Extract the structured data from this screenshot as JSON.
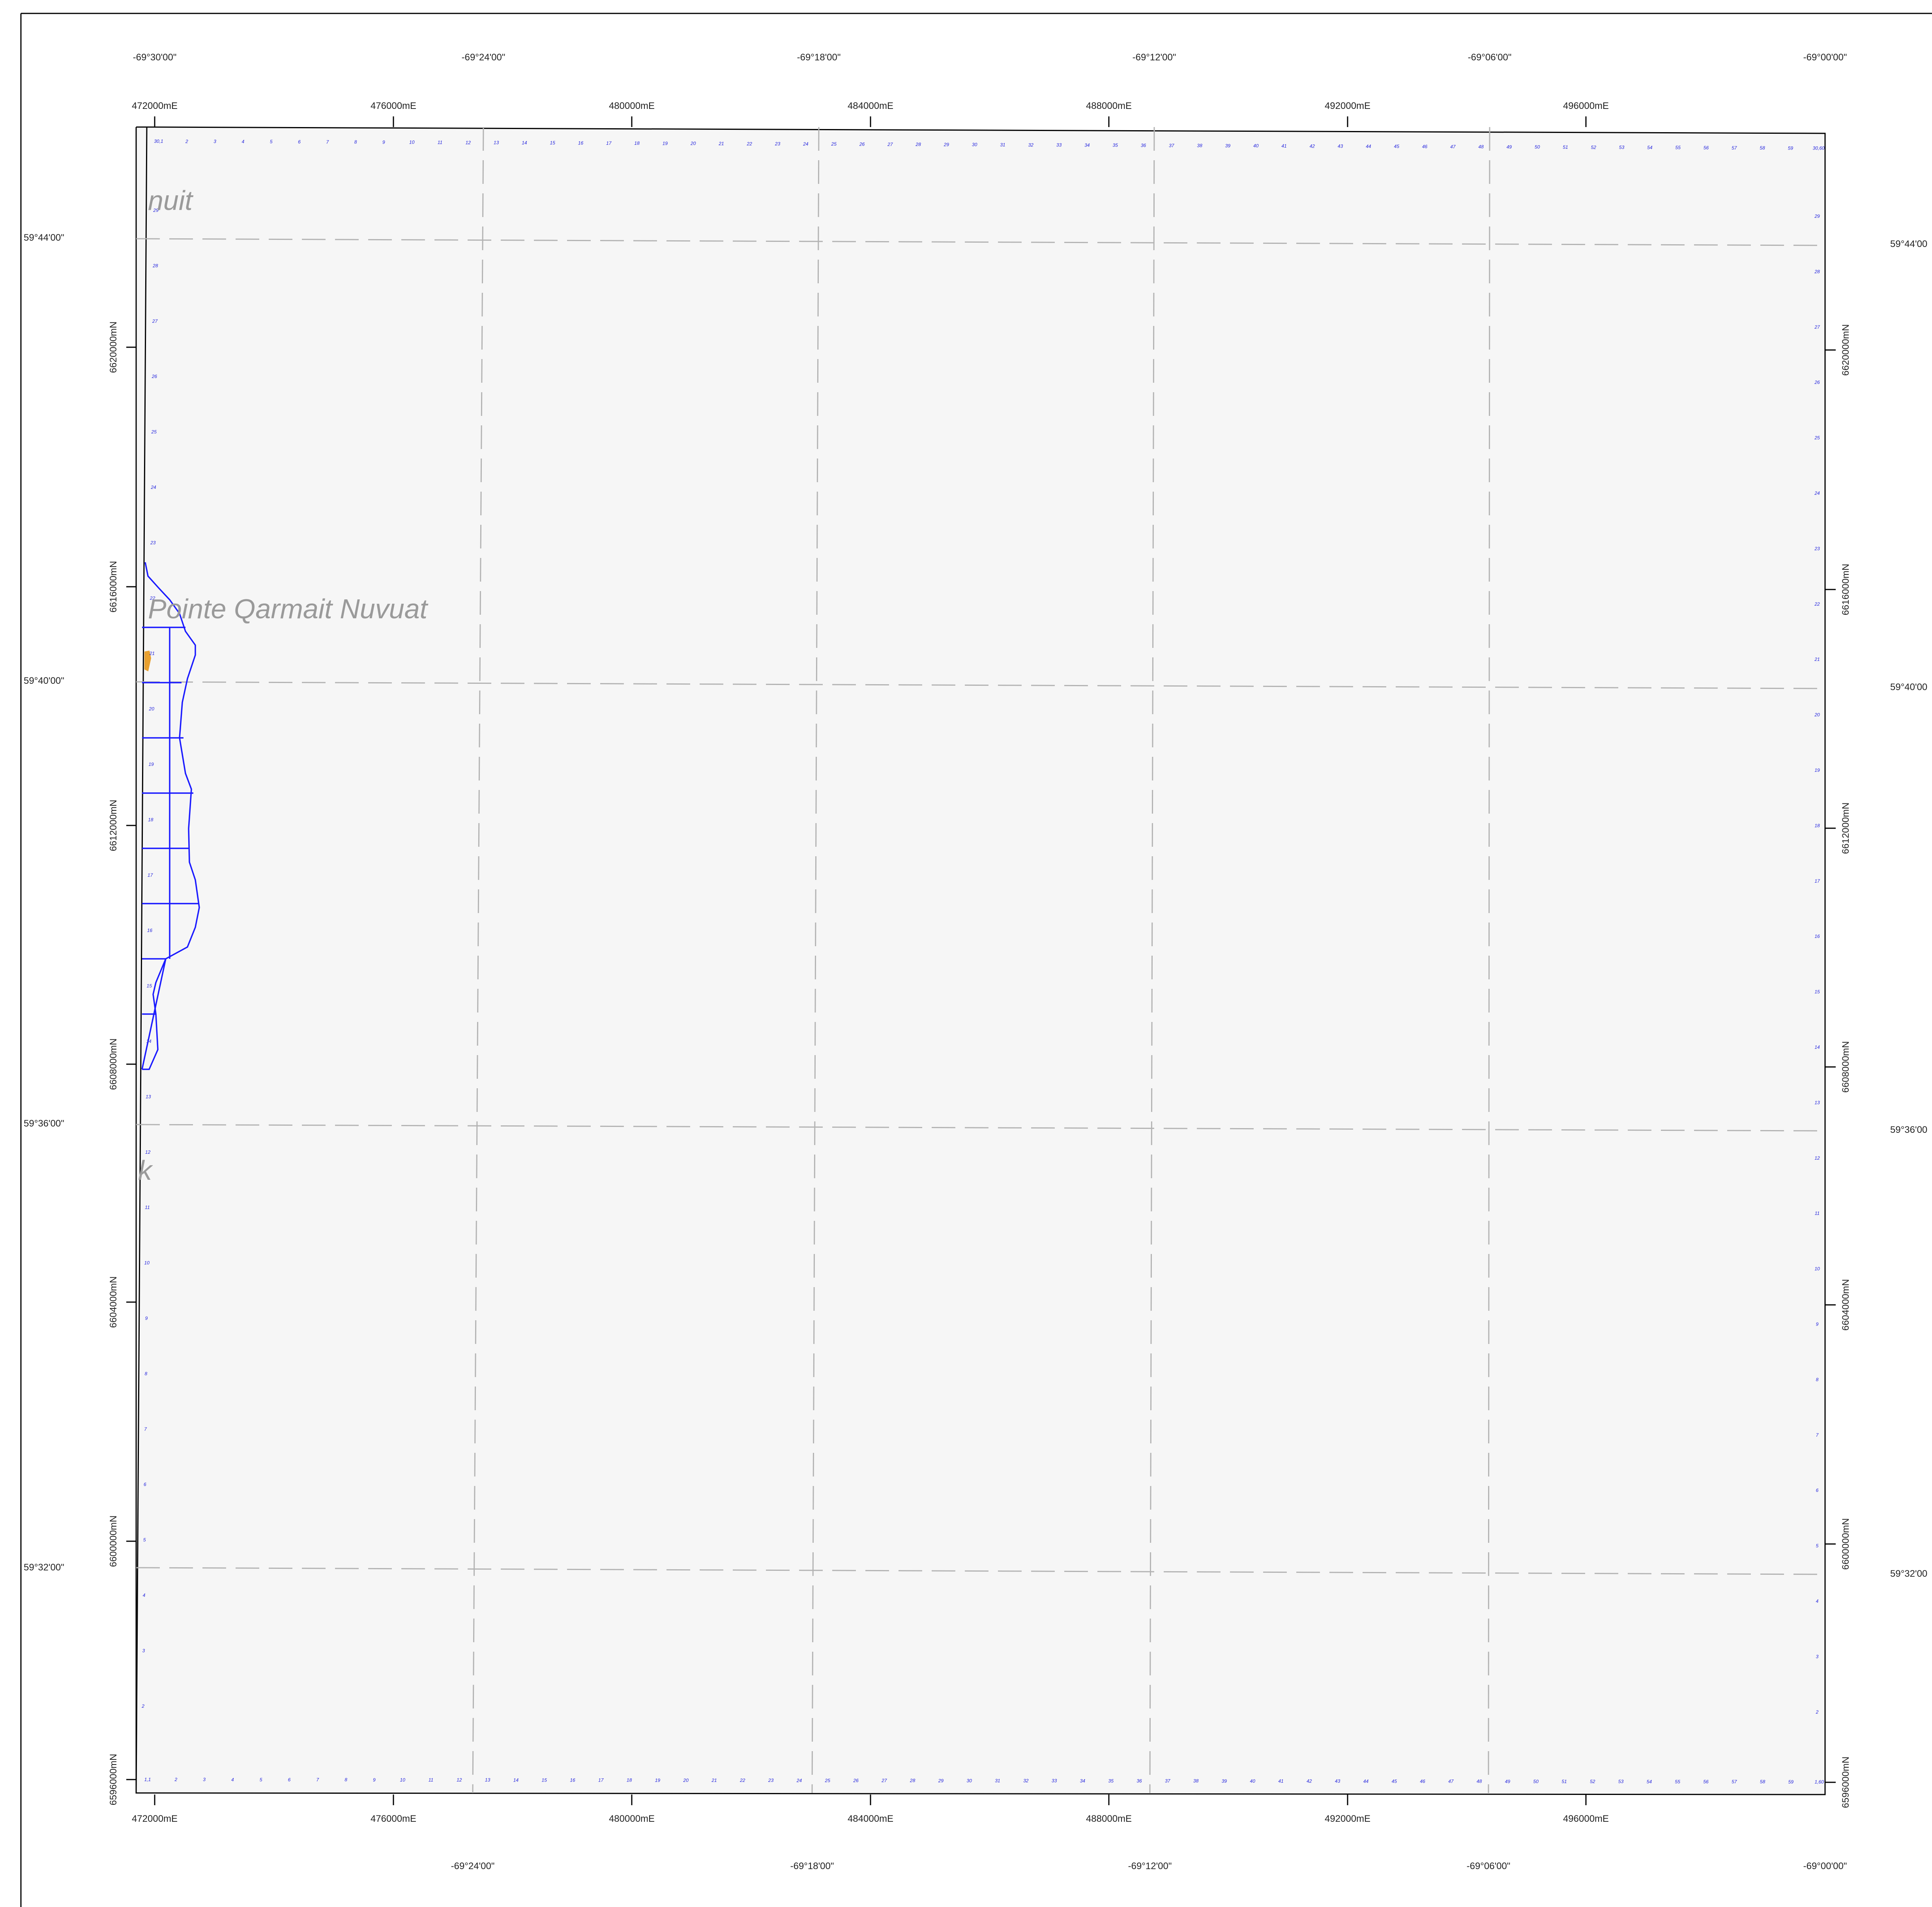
{
  "colors": {
    "page": "#ffffff",
    "map_fill": "#f6f6f6",
    "frame": "#000000",
    "graticule": "#b3b3b3",
    "claim_lines": "#1a1aff",
    "grid_numbers": "#2222dd",
    "place_label": "#9a9a9a",
    "feature": "#e8a030"
  },
  "place_labels": [
    "nuit",
    "Pointe Qarmait Nuvuat",
    "k"
  ],
  "longitude_labels_top": [
    "-69°30'00\"",
    "-69°24'00\"",
    "-69°18'00\"",
    "-69°12'00\"",
    "-69°06'00\"",
    "-69°00'00\""
  ],
  "longitude_labels_bottom": [
    "-69°24'00\"",
    "-69°18'00\"",
    "-69°12'00\"",
    "-69°06'00\"",
    "-69°00'00\""
  ],
  "latitude_labels_left": [
    "59°44'00\"",
    "59°40'00\"",
    "59°36'00\"",
    "59°32'00\""
  ],
  "latitude_labels_right": [
    "59°44'00",
    "59°40'00",
    "59°36'00",
    "59°32'00"
  ],
  "easting_labels": [
    "472000mE",
    "476000mE",
    "480000mE",
    "484000mE",
    "488000mE",
    "492000mE",
    "496000mE"
  ],
  "northing_labels": [
    "6620000mN",
    "6616000mN",
    "6612000mN",
    "6608000mN",
    "6604000mN",
    "6600000mN",
    "6596000mN"
  ],
  "grid_top_labels": [
    "30,1",
    "2",
    "3",
    "4",
    "5",
    "6",
    "7",
    "8",
    "9",
    "10",
    "11",
    "12",
    "13",
    "14",
    "15",
    "16",
    "17",
    "18",
    "19",
    "20",
    "21",
    "22",
    "23",
    "24",
    "25",
    "26",
    "27",
    "28",
    "29",
    "30",
    "31",
    "32",
    "33",
    "34",
    "35",
    "36",
    "37",
    "38",
    "39",
    "40",
    "41",
    "42",
    "43",
    "44",
    "45",
    "46",
    "47",
    "48",
    "49",
    "50",
    "51",
    "52",
    "53",
    "54",
    "55",
    "56",
    "57",
    "58",
    "59",
    "30,60"
  ],
  "grid_bottom_labels": [
    "1,1",
    "2",
    "3",
    "4",
    "5",
    "6",
    "7",
    "8",
    "9",
    "10",
    "11",
    "12",
    "13",
    "14",
    "15",
    "16",
    "17",
    "18",
    "19",
    "20",
    "21",
    "22",
    "23",
    "24",
    "25",
    "26",
    "27",
    "28",
    "29",
    "30",
    "31",
    "32",
    "33",
    "34",
    "35",
    "36",
    "37",
    "38",
    "39",
    "40",
    "41",
    "42",
    "43",
    "44",
    "45",
    "46",
    "47",
    "48",
    "49",
    "50",
    "51",
    "52",
    "53",
    "54",
    "55",
    "56",
    "57",
    "58",
    "59",
    "1,60"
  ],
  "grid_left_labels": [
    "29",
    "28",
    "27",
    "26",
    "25",
    "24",
    "23",
    "22",
    "21",
    "20",
    "19",
    "18",
    "17",
    "16",
    "15",
    "14",
    "13",
    "12",
    "11",
    "10",
    "9",
    "8",
    "7",
    "6",
    "5",
    "4",
    "3",
    "2"
  ],
  "grid_right_labels": [
    "29",
    "28",
    "27",
    "26",
    "25",
    "24",
    "23",
    "22",
    "21",
    "20",
    "19",
    "18",
    "17",
    "16",
    "15",
    "14",
    "13",
    "12",
    "11",
    "10",
    "9",
    "8",
    "7",
    "6",
    "5",
    "4",
    "3",
    "2"
  ]
}
